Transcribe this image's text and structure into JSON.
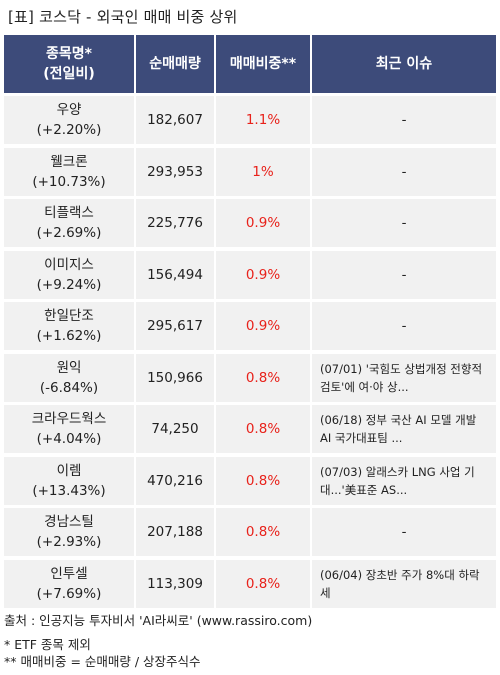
{
  "title": "[표] 코스닥 - 외국인 매매 비중 상위",
  "headers": {
    "name_line1": "종목명*",
    "name_line2": "(전일비)",
    "volume": "순매매량",
    "ratio": "매매비중**",
    "issue": "최근 이슈"
  },
  "rows": [
    {
      "name": "우양",
      "change": "(+2.20%)",
      "volume": "182,607",
      "ratio": "1.1%",
      "issue": "-"
    },
    {
      "name": "웰크론",
      "change": "(+10.73%)",
      "volume": "293,953",
      "ratio": "1%",
      "issue": "-"
    },
    {
      "name": "티플랙스",
      "change": "(+2.69%)",
      "volume": "225,776",
      "ratio": "0.9%",
      "issue": "-"
    },
    {
      "name": "이미지스",
      "change": "(+9.24%)",
      "volume": "156,494",
      "ratio": "0.9%",
      "issue": "-"
    },
    {
      "name": "한일단조",
      "change": "(+1.62%)",
      "volume": "295,617",
      "ratio": "0.9%",
      "issue": "-"
    },
    {
      "name": "원익",
      "change": "(-6.84%)",
      "volume": "150,966",
      "ratio": "0.8%",
      "issue": "(07/01) '국힘도 상법개정 전향적 검토'에 여·야 상..."
    },
    {
      "name": "크라우드웍스",
      "change": "(+4.04%)",
      "volume": "74,250",
      "ratio": "0.8%",
      "issue": "(06/18) 정부 국산 AI 모델 개발 AI 국가대표팀 ..."
    },
    {
      "name": "이렘",
      "change": "(+13.43%)",
      "volume": "470,216",
      "ratio": "0.8%",
      "issue": "(07/03) 알래스카 LNG 사업 기대...'美표준 AS..."
    },
    {
      "name": "경남스틸",
      "change": "(+2.93%)",
      "volume": "207,188",
      "ratio": "0.8%",
      "issue": "-"
    },
    {
      "name": "인투셀",
      "change": "(+7.69%)",
      "volume": "113,309",
      "ratio": "0.8%",
      "issue": "(06/04) 장초반 주가 8%대 하락세"
    }
  ],
  "footer": {
    "source": "출처 : 인공지능 투자비서 'AI라씨로' (www.rassiro.com)",
    "note1": "* ETF 종목 제외",
    "note2": "** 매매비중 = 순매매량 / 상장주식수"
  },
  "colors": {
    "header_bg": "#3d4b7a",
    "header_text": "#ffffff",
    "row_bg": "#f1f1f1",
    "ratio_text": "#e8221b"
  }
}
